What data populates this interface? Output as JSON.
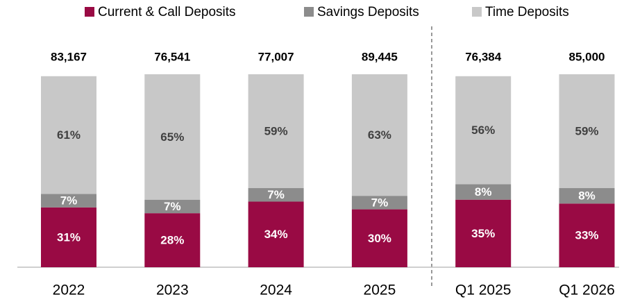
{
  "chart_data": {
    "type": "stacked_bar",
    "categories": [
      "2022",
      "2023",
      "2024",
      "2025",
      "Q1 2025",
      "Q1 2026"
    ],
    "series": [
      {
        "name": "Current & Call Deposits",
        "color": "#990a44",
        "values": [
          31,
          28,
          34,
          30,
          35,
          33
        ],
        "value_labels": [
          "31%",
          "28%",
          "34%",
          "30%",
          "35%",
          "33%"
        ]
      },
      {
        "name": "Savings Deposits",
        "color": "#8c8c8c",
        "values": [
          7,
          7,
          7,
          7,
          8,
          8
        ],
        "value_labels": [
          "7%",
          "7%",
          "7%",
          "7%",
          "8%",
          "8%"
        ]
      },
      {
        "name": "Time Deposits",
        "color": "#c8c8c8",
        "values": [
          61,
          65,
          59,
          63,
          56,
          59
        ],
        "value_labels": [
          "61%",
          "65%",
          "59%",
          "63%",
          "56%",
          "59%"
        ]
      }
    ],
    "totals": [
      {
        "value": 83167,
        "label": "83,167"
      },
      {
        "value": 76541,
        "label": "76,541"
      },
      {
        "value": 77007,
        "label": "77,007"
      },
      {
        "value": 89445,
        "label": "89,445"
      },
      {
        "value": 76384,
        "label": "76,384"
      },
      {
        "value": 85000,
        "label": "85,000"
      }
    ],
    "ylim": [
      0,
      100
    ]
  }
}
